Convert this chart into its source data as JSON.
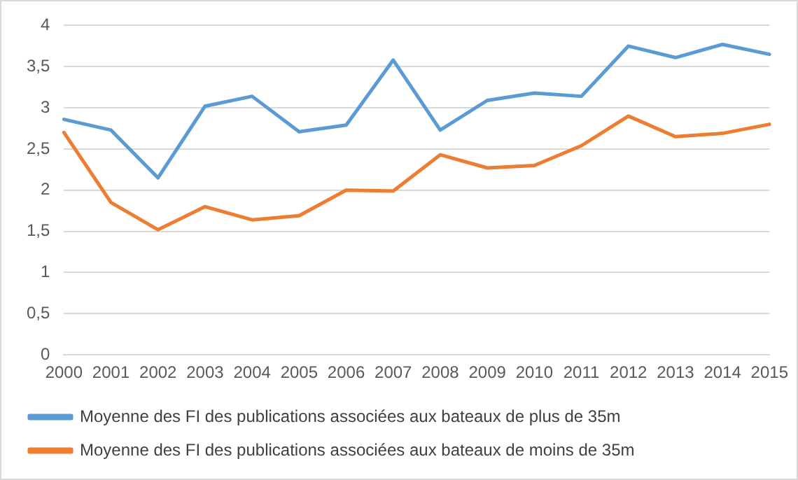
{
  "chart_data": {
    "type": "line",
    "categories": [
      "2000",
      "2001",
      "2002",
      "2003",
      "2004",
      "2005",
      "2006",
      "2007",
      "2008",
      "2009",
      "2010",
      "2011",
      "2012",
      "2013",
      "2014",
      "2015"
    ],
    "series": [
      {
        "name": "Moyenne des FI des publications associées aux bateaux de plus de 35m",
        "color": "#5b9bd5",
        "values": [
          2.86,
          2.73,
          2.15,
          3.02,
          3.14,
          2.71,
          2.79,
          3.58,
          2.73,
          3.09,
          3.18,
          3.14,
          3.75,
          3.61,
          3.77,
          3.65
        ]
      },
      {
        "name": "Moyenne des FI des publications associées aux bateaux de moins de 35m",
        "color": "#ed7d31",
        "values": [
          2.7,
          1.85,
          1.52,
          1.8,
          1.64,
          1.69,
          2.0,
          1.99,
          2.43,
          2.27,
          2.3,
          2.54,
          2.9,
          2.65,
          2.69,
          2.8
        ]
      }
    ],
    "ylim": [
      0,
      4
    ],
    "yticks": [
      {
        "value": 0,
        "label": "0"
      },
      {
        "value": 0.5,
        "label": "0,5"
      },
      {
        "value": 1,
        "label": "1"
      },
      {
        "value": 1.5,
        "label": "1,5"
      },
      {
        "value": 2,
        "label": "2"
      },
      {
        "value": 2.5,
        "label": "2,5"
      },
      {
        "value": 3,
        "label": "3"
      },
      {
        "value": 3.5,
        "label": "3,5"
      },
      {
        "value": 4,
        "label": "4"
      }
    ],
    "grid": "y",
    "legend": "bottom",
    "marker": "none",
    "line_style": "solid"
  }
}
